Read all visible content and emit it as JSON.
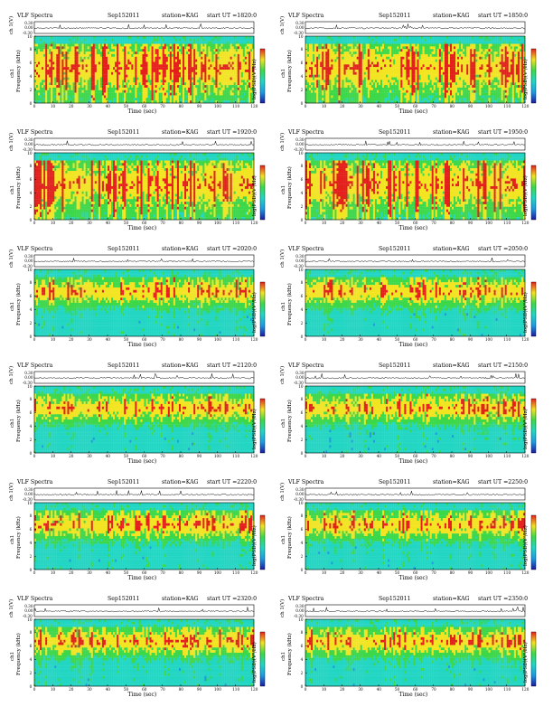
{
  "chart_data": [
    {
      "type": "heatmap",
      "title": "VLF Spectra",
      "date": "Sep152011",
      "station": "station=KAG",
      "start": "start  UT  =1820:0",
      "ylabel_top": "ch 1(V)",
      "ylabel_main": "ch1",
      "ylabel_freq": "Frequency  (kHz)",
      "xlabel": "Time  (sec)",
      "colorbar_label": "log(PSD)(V²/Hz)",
      "x_ticks": [
        "0",
        "10",
        "20",
        "30",
        "40",
        "50",
        "60",
        "70",
        "80",
        "90",
        "100",
        "110",
        "120"
      ],
      "y_ticks": [
        "0",
        "2",
        "4",
        "6",
        "8",
        "10"
      ],
      "top_ticks": [
        "0.30",
        "0.00",
        "-0.30"
      ],
      "xlim": [
        0,
        120
      ],
      "ylim": [
        0,
        10
      ]
    },
    {
      "type": "heatmap",
      "title": "VLF Spectra",
      "date": "Sep152011",
      "station": "station=KAG",
      "start": "start  UT  =1850:0",
      "ylabel_top": "ch 1(V)",
      "ylabel_main": "ch1",
      "ylabel_freq": "Frequency  (kHz)",
      "xlabel": "Time  (sec)",
      "colorbar_label": "log(PSD)(V²/Hz)",
      "x_ticks": [
        "0",
        "10",
        "20",
        "30",
        "40",
        "50",
        "60",
        "70",
        "80",
        "90",
        "100",
        "110",
        "120"
      ],
      "y_ticks": [
        "0",
        "2",
        "4",
        "6",
        "8",
        "10"
      ],
      "top_ticks": [
        "0.30",
        "0.00",
        "-0.30"
      ],
      "xlim": [
        0,
        120
      ],
      "ylim": [
        0,
        10
      ]
    },
    {
      "type": "heatmap",
      "title": "VLF Spectra",
      "date": "Sep152011",
      "station": "station=KAG",
      "start": "start  UT  =1920:0",
      "ylabel_top": "ch 1(V)",
      "ylabel_main": "ch1",
      "ylabel_freq": "Frequency  (kHz)",
      "xlabel": "Time  (sec)",
      "colorbar_label": "log(PSD)(V²/Hz)",
      "x_ticks": [
        "0",
        "10",
        "20",
        "30",
        "40",
        "50",
        "60",
        "70",
        "80",
        "90",
        "100",
        "110",
        "120"
      ],
      "y_ticks": [
        "0",
        "2",
        "4",
        "6",
        "8",
        "10"
      ],
      "top_ticks": [
        "0.30",
        "0.00",
        "-0.30"
      ],
      "xlim": [
        0,
        120
      ],
      "ylim": [
        0,
        10
      ]
    },
    {
      "type": "heatmap",
      "title": "VLF Spectra",
      "date": "Sep152011",
      "station": "station=KAG",
      "start": "start  UT  =1950:0",
      "ylabel_top": "ch 1(V)",
      "ylabel_main": "ch1",
      "ylabel_freq": "Frequency  (kHz)",
      "xlabel": "Time  (sec)",
      "colorbar_label": "log(PSD)(V²/Hz)",
      "x_ticks": [
        "0",
        "10",
        "20",
        "30",
        "40",
        "50",
        "60",
        "70",
        "80",
        "90",
        "100",
        "110",
        "120"
      ],
      "y_ticks": [
        "0",
        "2",
        "4",
        "6",
        "8",
        "10"
      ],
      "top_ticks": [
        "0.30",
        "0.00",
        "-0.30"
      ],
      "xlim": [
        0,
        120
      ],
      "ylim": [
        0,
        10
      ]
    },
    {
      "type": "heatmap",
      "title": "VLF Spectra",
      "date": "Sep152011",
      "station": "station=KAG",
      "start": "start  UT  =2020:0",
      "ylabel_top": "ch 1(V)",
      "ylabel_main": "ch1",
      "ylabel_freq": "Frequency  (kHz)",
      "xlabel": "Time  (sec)",
      "colorbar_label": "log(PSD)(V²/Hz)",
      "x_ticks": [
        "0",
        "10",
        "20",
        "30",
        "40",
        "50",
        "60",
        "70",
        "80",
        "90",
        "100",
        "110",
        "120"
      ],
      "y_ticks": [
        "0",
        "2",
        "4",
        "6",
        "8",
        "10"
      ],
      "top_ticks": [
        "0.30",
        "0.00",
        "-0.30"
      ],
      "xlim": [
        0,
        120
      ],
      "ylim": [
        0,
        10
      ]
    },
    {
      "type": "heatmap",
      "title": "VLF Spectra",
      "date": "Sep152011",
      "station": "station=KAG",
      "start": "start  UT  =2050:0",
      "ylabel_top": "ch 1(V)",
      "ylabel_main": "ch1",
      "ylabel_freq": "Frequency  (kHz)",
      "xlabel": "Time  (sec)",
      "colorbar_label": "log(PSD)(V²/Hz)",
      "x_ticks": [
        "0",
        "10",
        "20",
        "30",
        "40",
        "50",
        "60",
        "70",
        "80",
        "90",
        "100",
        "110",
        "120"
      ],
      "y_ticks": [
        "0",
        "2",
        "4",
        "6",
        "8",
        "10"
      ],
      "top_ticks": [
        "0.30",
        "0.00",
        "-0.30"
      ],
      "xlim": [
        0,
        120
      ],
      "ylim": [
        0,
        10
      ]
    },
    {
      "type": "heatmap",
      "title": "VLF Spectra",
      "date": "Sep152011",
      "station": "station=KAG",
      "start": "start  UT  =2120:0",
      "ylabel_top": "ch 1(V)",
      "ylabel_main": "ch1",
      "ylabel_freq": "Frequency  (kHz)",
      "xlabel": "Time  (sec)",
      "colorbar_label": "log(PSD)(V²/Hz)",
      "x_ticks": [
        "0",
        "10",
        "20",
        "30",
        "40",
        "50",
        "60",
        "70",
        "80",
        "90",
        "100",
        "110",
        "120"
      ],
      "y_ticks": [
        "0",
        "2",
        "4",
        "6",
        "8",
        "10"
      ],
      "top_ticks": [
        "0.30",
        "0.00",
        "-0.30"
      ],
      "xlim": [
        0,
        120
      ],
      "ylim": [
        0,
        10
      ]
    },
    {
      "type": "heatmap",
      "title": "VLF Spectra",
      "date": "Sep152011",
      "station": "station=KAG",
      "start": "start  UT  =2150:0",
      "ylabel_top": "ch 1(V)",
      "ylabel_main": "ch1",
      "ylabel_freq": "Frequency  (kHz)",
      "xlabel": "Time  (sec)",
      "colorbar_label": "log(PSD)(V²/Hz)",
      "x_ticks": [
        "0",
        "10",
        "20",
        "30",
        "40",
        "50",
        "60",
        "70",
        "80",
        "90",
        "100",
        "110",
        "120"
      ],
      "y_ticks": [
        "0",
        "2",
        "4",
        "6",
        "8",
        "10"
      ],
      "top_ticks": [
        "0.30",
        "0.00",
        "-0.30"
      ],
      "xlim": [
        0,
        120
      ],
      "ylim": [
        0,
        10
      ]
    },
    {
      "type": "heatmap",
      "title": "VLF Spectra",
      "date": "Sep152011",
      "station": "station=KAG",
      "start": "start  UT  =2220:0",
      "ylabel_top": "ch 1(V)",
      "ylabel_main": "ch1",
      "ylabel_freq": "Frequency  (kHz)",
      "xlabel": "Time  (sec)",
      "colorbar_label": "log(PSD)(V²/Hz)",
      "x_ticks": [
        "0",
        "10",
        "20",
        "30",
        "40",
        "50",
        "60",
        "70",
        "80",
        "90",
        "100",
        "110",
        "120"
      ],
      "y_ticks": [
        "0",
        "2",
        "4",
        "6",
        "8",
        "10"
      ],
      "top_ticks": [
        "0.30",
        "0.00",
        "-0.30"
      ],
      "xlim": [
        0,
        120
      ],
      "ylim": [
        0,
        10
      ]
    },
    {
      "type": "heatmap",
      "title": "VLF Spectra",
      "date": "Sep152011",
      "station": "station=KAG",
      "start": "start  UT  =2250:0",
      "ylabel_top": "ch 1(V)",
      "ylabel_main": "ch1",
      "ylabel_freq": "Frequency  (kHz)",
      "xlabel": "Time  (sec)",
      "colorbar_label": "log(PSD)(V²/Hz)",
      "x_ticks": [
        "0",
        "10",
        "20",
        "30",
        "40",
        "50",
        "60",
        "70",
        "80",
        "90",
        "100",
        "110",
        "120"
      ],
      "y_ticks": [
        "0",
        "2",
        "4",
        "6",
        "8",
        "10"
      ],
      "top_ticks": [
        "0.30",
        "0.00",
        "-0.30"
      ],
      "xlim": [
        0,
        120
      ],
      "ylim": [
        0,
        10
      ]
    },
    {
      "type": "heatmap",
      "title": "VLF Spectra",
      "date": "Sep152011",
      "station": "station=KAG",
      "start": "start  UT  =2320:0",
      "ylabel_top": "ch 1(V)",
      "ylabel_main": "ch1",
      "ylabel_freq": "Frequency  (kHz)",
      "xlabel": "Time  (sec)",
      "colorbar_label": "log(PSD)(V²/Hz)",
      "x_ticks": [
        "0",
        "10",
        "20",
        "30",
        "40",
        "50",
        "60",
        "70",
        "80",
        "90",
        "100",
        "110",
        "120"
      ],
      "y_ticks": [
        "0",
        "2",
        "4",
        "6",
        "8",
        "10"
      ],
      "top_ticks": [
        "0.30",
        "0.00",
        "-0.30"
      ],
      "xlim": [
        0,
        120
      ],
      "ylim": [
        0,
        10
      ]
    },
    {
      "type": "heatmap",
      "title": "VLF Spectra",
      "date": "Sep152011",
      "station": "station=KAG",
      "start": "start  UT  =2350:0",
      "ylabel_top": "ch 1(V)",
      "ylabel_main": "ch1",
      "ylabel_freq": "Frequency  (kHz)",
      "xlabel": "Time  (sec)",
      "colorbar_label": "log(PSD)(V²/Hz)",
      "x_ticks": [
        "0",
        "10",
        "20",
        "30",
        "40",
        "50",
        "60",
        "70",
        "80",
        "90",
        "100",
        "110",
        "120"
      ],
      "y_ticks": [
        "0",
        "2",
        "4",
        "6",
        "8",
        "10"
      ],
      "top_ticks": [
        "0.30",
        "0.00",
        "-0.30"
      ],
      "xlim": [
        0,
        120
      ],
      "ylim": [
        0,
        10
      ]
    }
  ],
  "colors": {
    "background": "#ffffff",
    "spectrum_low": "#1e9be0",
    "spectrum_mid_low": "#22d6c3",
    "spectrum_mid": "#3cd84a",
    "spectrum_mid_high": "#f2e420",
    "spectrum_high": "#e4201c",
    "colorbar": [
      "#e4201c",
      "#f2e420",
      "#3cd84a",
      "#22d6c3",
      "#1e9be0",
      "#1a1aa0"
    ]
  }
}
